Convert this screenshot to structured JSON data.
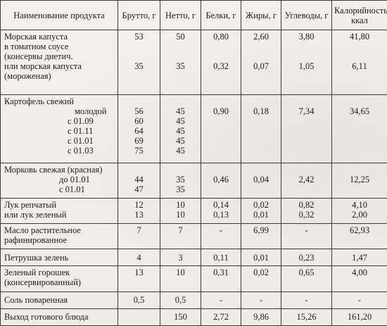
{
  "headers": {
    "product": "Наименование продукта",
    "brutto": "Брутто, г",
    "netto": "Нетто, г",
    "protein": "Белки, г",
    "fat": "Жиры, г",
    "carbs": "Углеводы, г",
    "calories": "Калорийность, ккал"
  },
  "rows": {
    "cabbage": {
      "name_lines": [
        "Морская капуста",
        "в томатном соусе",
        "(консервы диетич.",
        "или морская капуста",
        "(мороженая)"
      ],
      "brutto": [
        "53",
        "35"
      ],
      "netto": [
        "50",
        "35"
      ],
      "protein": [
        "0,80",
        "0,32"
      ],
      "fat": [
        "2,60",
        "0,07"
      ],
      "carbs": [
        "3,80",
        "1,05"
      ],
      "calories": [
        "41,80",
        "6,11"
      ]
    },
    "potato": {
      "name": "Картофель свежий",
      "sub": [
        "молодой",
        "с 01.09",
        "с 01.11",
        "с 01.01",
        "с 01.03"
      ],
      "brutto": [
        "56",
        "60",
        "64",
        "69",
        "75"
      ],
      "netto": [
        "45",
        "45",
        "45",
        "45",
        "45"
      ],
      "protein": "0,90",
      "fat": "0,18",
      "carbs": "7,34",
      "calories": "34,65"
    },
    "carrot": {
      "name": "Морковь свежая (красная)",
      "sub": [
        "до 01.01",
        "с 01.01"
      ],
      "brutto": [
        "44",
        "47"
      ],
      "netto": [
        "35",
        "35"
      ],
      "protein": "0,46",
      "fat": "0,04",
      "carbs": "2,42",
      "calories": "12,25"
    },
    "onion": {
      "name_lines": [
        "Лук репчатый",
        "или лук зеленый"
      ],
      "brutto": [
        "12",
        "13"
      ],
      "netto": [
        "10",
        "10"
      ],
      "protein": [
        "0,14",
        "0,13"
      ],
      "fat": [
        "0,02",
        "0,01"
      ],
      "carbs": [
        "0,82",
        "0,32"
      ],
      "calories": [
        "4,10",
        "2,00"
      ]
    },
    "oil": {
      "name_lines": [
        "Масло растительное",
        "рафинированное"
      ],
      "brutto": "7",
      "netto": "7",
      "protein": "-",
      "fat": "6,99",
      "carbs": "-",
      "calories": "62,93"
    },
    "parsley": {
      "name": "Петрушка зелень",
      "brutto": "4",
      "netto": "3",
      "protein": "0,11",
      "fat": "0,01",
      "carbs": "0,23",
      "calories": "1,47"
    },
    "peas": {
      "name_lines": [
        "Зеленый горошек",
        "(консервированный)"
      ],
      "brutto": "13",
      "netto": "10",
      "protein": "0,31",
      "fat": "0,02",
      "carbs": "0,65",
      "calories": "4,00"
    },
    "salt": {
      "name": "Соль поваренная",
      "brutto": "0,5",
      "netto": "0,5",
      "protein": "-",
      "fat": "-",
      "carbs": "-",
      "calories": "-"
    },
    "total": {
      "name": "Выход готового блюда",
      "brutto": "",
      "netto": "150",
      "protein": "2,72",
      "fat": "9,86",
      "carbs": "15,26",
      "calories": "161,20"
    }
  }
}
